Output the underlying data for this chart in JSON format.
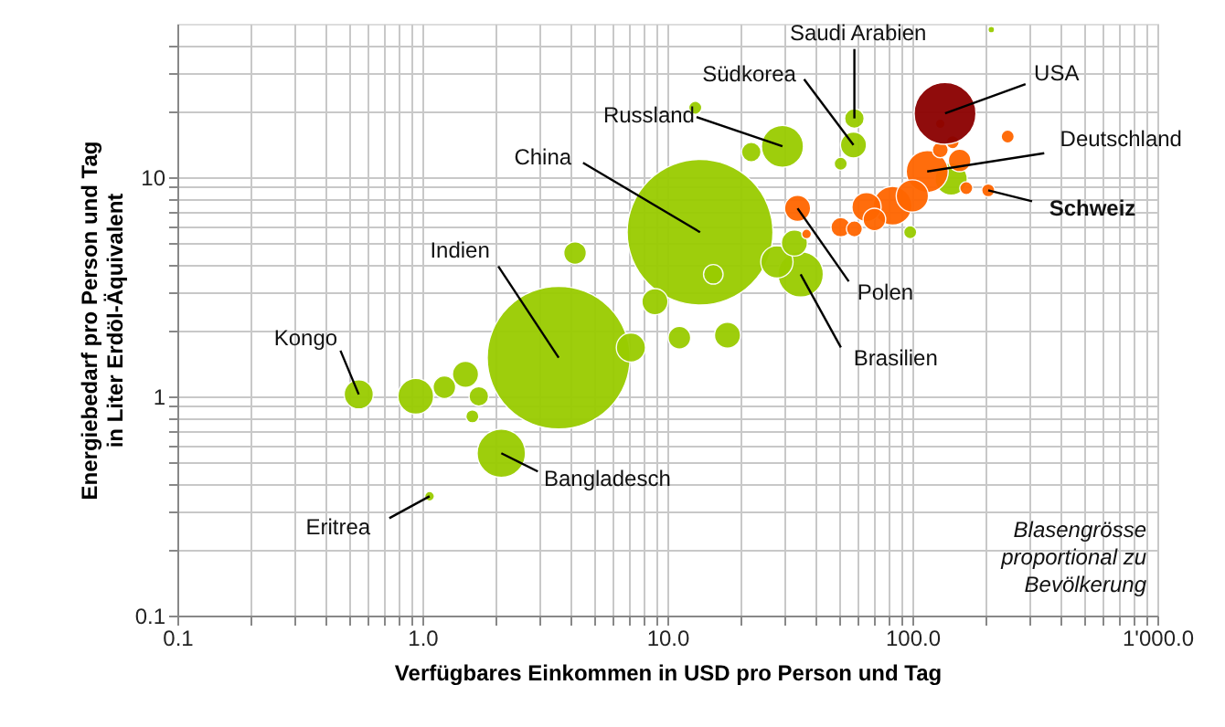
{
  "chart_data": {
    "type": "bubble",
    "xlabel": "Verfügbares Einkommen in USD pro Person und Tag",
    "ylabel": "Energiebedarf pro Person und Tag\nin Liter Erdöl-Äquivalent",
    "log": "xy",
    "grid": true,
    "xlim": [
      0.1,
      1000
    ],
    "ylim": [
      0.1,
      50
    ],
    "xticks": [
      {
        "value": 0.1,
        "label": "0.1"
      },
      {
        "value": 0.2,
        "label": null
      },
      {
        "value": 0.3,
        "label": null
      },
      {
        "value": 0.4,
        "label": null
      },
      {
        "value": 0.5,
        "label": null
      },
      {
        "value": 0.6,
        "label": null
      },
      {
        "value": 0.7,
        "label": null
      },
      {
        "value": 0.8,
        "label": null
      },
      {
        "value": 0.9,
        "label": null
      },
      {
        "value": 1,
        "label": "1.0"
      },
      {
        "value": 2,
        "label": null
      },
      {
        "value": 3,
        "label": null
      },
      {
        "value": 4,
        "label": null
      },
      {
        "value": 5,
        "label": null
      },
      {
        "value": 6,
        "label": null
      },
      {
        "value": 7,
        "label": null
      },
      {
        "value": 8,
        "label": null
      },
      {
        "value": 9,
        "label": null
      },
      {
        "value": 10,
        "label": "10.0"
      },
      {
        "value": 20,
        "label": null
      },
      {
        "value": 30,
        "label": null
      },
      {
        "value": 40,
        "label": null
      },
      {
        "value": 50,
        "label": null
      },
      {
        "value": 60,
        "label": null
      },
      {
        "value": 70,
        "label": null
      },
      {
        "value": 80,
        "label": null
      },
      {
        "value": 90,
        "label": null
      },
      {
        "value": 100,
        "label": "100.0"
      },
      {
        "value": 200,
        "label": null
      },
      {
        "value": 300,
        "label": null
      },
      {
        "value": 400,
        "label": null
      },
      {
        "value": 500,
        "label": null
      },
      {
        "value": 600,
        "label": null
      },
      {
        "value": 700,
        "label": null
      },
      {
        "value": 800,
        "label": null
      },
      {
        "value": 900,
        "label": null
      },
      {
        "value": 1000,
        "label": "1'000.0"
      }
    ],
    "yticks": [
      0.1,
      {
        "value": 0.2,
        "label": null
      },
      {
        "value": 0.3,
        "label": null
      },
      {
        "value": 0.4,
        "label": null
      },
      {
        "value": 0.5,
        "label": null
      },
      {
        "value": 0.6,
        "label": null
      },
      {
        "value": 0.7,
        "label": null
      },
      {
        "value": 0.8,
        "label": null
      },
      {
        "value": 0.9,
        "label": null
      },
      1,
      {
        "value": 2,
        "label": null
      },
      {
        "value": 3,
        "label": null
      },
      {
        "value": 4,
        "label": null
      },
      {
        "value": 5,
        "label": null
      },
      {
        "value": 6,
        "label": null
      },
      {
        "value": 7,
        "label": null
      },
      {
        "value": 8,
        "label": null
      },
      {
        "value": 9,
        "label": null
      },
      10,
      {
        "value": 20,
        "label": null
      },
      {
        "value": 30,
        "label": null
      },
      {
        "value": 40,
        "label": null
      }
    ],
    "series": [
      {
        "color": "#99cc00",
        "x": [
          13.6,
          3.6,
          2.1,
          35,
          29.5,
          28,
          144,
          0.94,
          7.1,
          0.55,
          8.9,
          17.6,
          33,
          1.5,
          57.5,
          4.2,
          11.2,
          1.23,
          22,
          15.4,
          1.7,
          58,
          13,
          51,
          98,
          1.6,
          1.07,
          210
        ],
        "values": [
          5.6,
          1.5,
          0.55,
          3.6,
          13.8,
          4.1,
          9.8,
          1.0,
          1.67,
          1.02,
          2.7,
          1.9,
          5,
          1.26,
          14.0,
          4.5,
          1.85,
          1.1,
          13,
          3.6,
          1.0,
          18.5,
          20.7,
          11.5,
          5.6,
          0.81,
          0.35,
          47
        ],
        "sizes": [
          1,
          0.96,
          0.11,
          0.097,
          0.083,
          0.049,
          0.049,
          0.06,
          0.04,
          0.04,
          0.032,
          0.032,
          0.032,
          0.032,
          0.032,
          0.024,
          0.024,
          0.024,
          0.018,
          0.018,
          0.018,
          0.018,
          0.008,
          0.008,
          0.008,
          0.008,
          0.0044,
          0.002
        ]
      },
      {
        "color": "#ff6600",
        "x": [
          115,
          83,
          100,
          65,
          34,
          70,
          51,
          156,
          58,
          130,
          204,
          166,
          146,
          245,
          130,
          37
        ],
        "values": [
          10.6,
          7.4,
          8.2,
          7.3,
          7.2,
          6.4,
          5.9,
          11.9,
          5.8,
          13.3,
          8.7,
          8.9,
          14.4,
          15.3,
          17.5,
          5.5
        ],
        "sizes": [
          0.083,
          0.071,
          0.049,
          0.04,
          0.032,
          0.024,
          0.018,
          0.024,
          0.012,
          0.012,
          0.008,
          0.008,
          0.008,
          0.008,
          0.0044,
          0.0044
        ]
      },
      {
        "color": "#8b0000",
        "x": [
          136
        ],
        "values": [
          19.5
        ],
        "sizes": [
          0.18
        ]
      }
    ],
    "annotations": [
      {
        "text": "Saudi Arabien",
        "x": 58,
        "y": 18.5
      },
      {
        "text": "Südkorea",
        "x": 57.5,
        "y": 14.0
      },
      {
        "text": "Russland",
        "x": 29.5,
        "y": 13.8
      },
      {
        "text": "China",
        "x": 13.6,
        "y": 5.6
      },
      {
        "text": "Indien",
        "x": 3.6,
        "y": 1.5
      },
      {
        "text": "Kongo",
        "x": 0.55,
        "y": 1.02
      },
      {
        "text": "Eritrea",
        "x": 1.07,
        "y": 0.35
      },
      {
        "text": "Bangladesch",
        "x": 2.1,
        "y": 0.55
      },
      {
        "text": "Polen",
        "x": 34,
        "y": 7.2
      },
      {
        "text": "Brasilien",
        "x": 35,
        "y": 3.6
      },
      {
        "text": "USA",
        "x": 136,
        "y": 19.5
      },
      {
        "text": "Deutschland",
        "x": 115,
        "y": 10.6
      },
      {
        "text": "Schweiz",
        "x": 204,
        "y": 8.7
      },
      "Blasengrösse\nproportional zu\nBevölkerung"
    ]
  }
}
